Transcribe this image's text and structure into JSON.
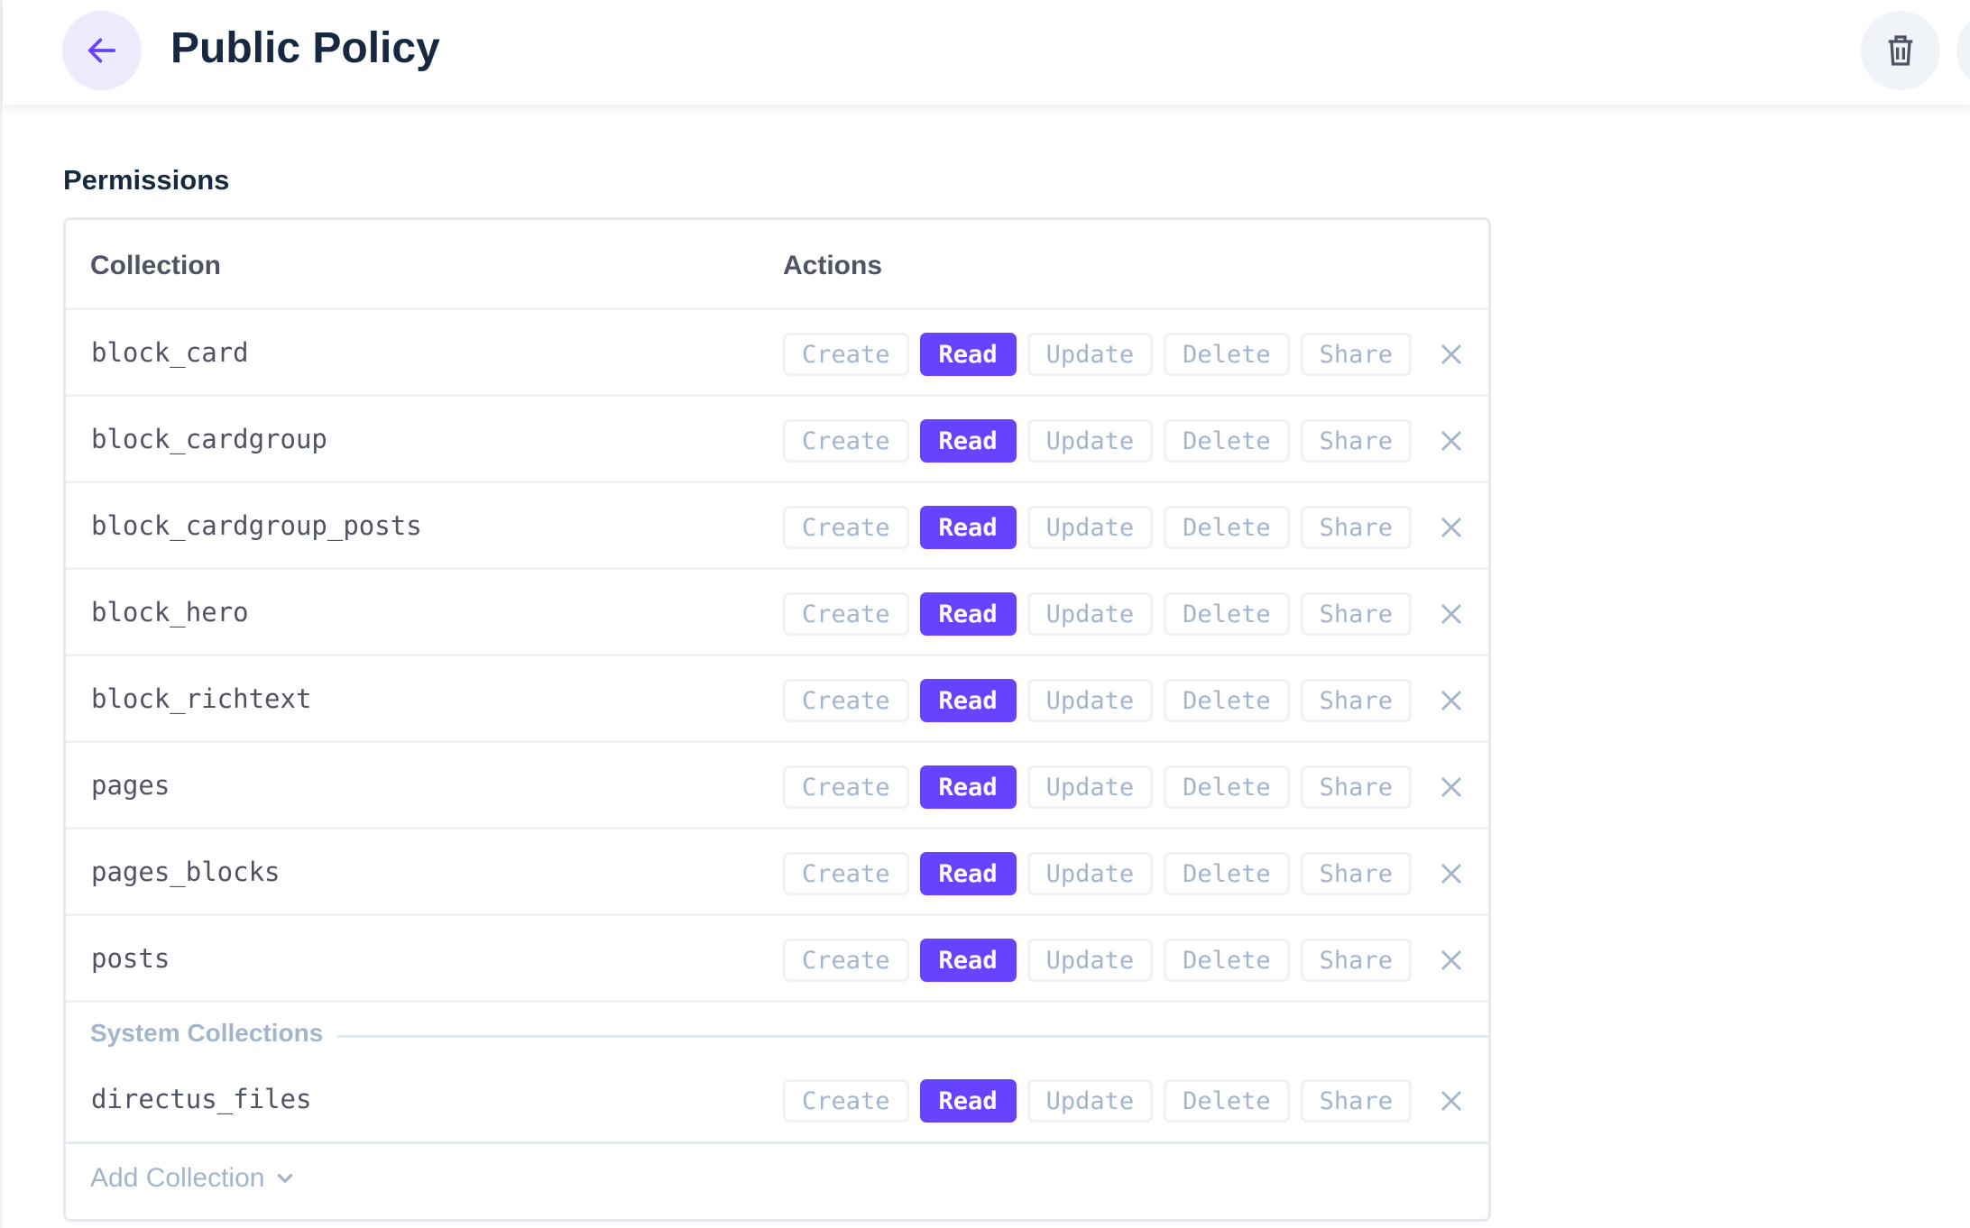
{
  "header": {
    "title": "Public Policy",
    "back_icon": "arrow-left-icon",
    "delete_icon": "trash-icon"
  },
  "permissions": {
    "section_title": "Permissions",
    "columns": {
      "collection": "Collection",
      "actions": "Actions"
    },
    "action_labels": [
      "Create",
      "Read",
      "Update",
      "Delete",
      "Share"
    ],
    "rows": [
      {
        "name": "block_card",
        "enabled": [
          "Read"
        ]
      },
      {
        "name": "block_cardgroup",
        "enabled": [
          "Read"
        ]
      },
      {
        "name": "block_cardgroup_posts",
        "enabled": [
          "Read"
        ]
      },
      {
        "name": "block_hero",
        "enabled": [
          "Read"
        ]
      },
      {
        "name": "block_richtext",
        "enabled": [
          "Read"
        ]
      },
      {
        "name": "pages",
        "enabled": [
          "Read"
        ]
      },
      {
        "name": "pages_blocks",
        "enabled": [
          "Read"
        ]
      },
      {
        "name": "posts",
        "enabled": [
          "Read"
        ]
      }
    ],
    "system_label": "System Collections",
    "system_rows": [
      {
        "name": "directus_files",
        "enabled": [
          "Read"
        ]
      }
    ],
    "add_collection": "Add Collection"
  },
  "colors": {
    "accent": "#6644ff",
    "muted": "#a2b5cd",
    "text": "#172940"
  }
}
